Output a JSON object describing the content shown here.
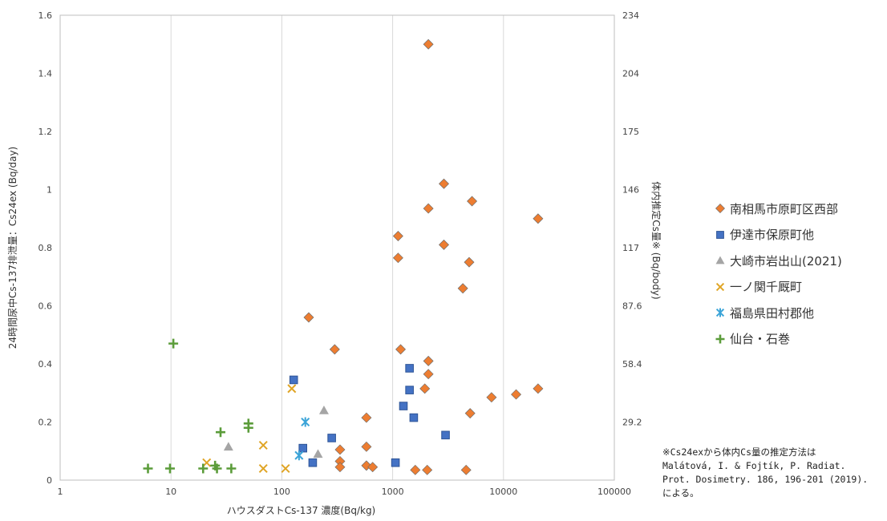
{
  "chart_data": {
    "type": "scatter",
    "xlabel": "ハウスダストCs-137 濃度(Bq/kg)",
    "ylabel": "24時間尿中Cs-137排泄量：Cs24ex (Bq/day)",
    "y2label": "体内推定Cs量※ (Bq/body)",
    "x_scale": "log",
    "xlim": [
      1,
      100000
    ],
    "ylim": [
      0,
      1.6
    ],
    "grid": "vertical major lines only",
    "legend_position": "right",
    "x_ticks": [
      "1",
      "10",
      "100",
      "1000",
      "10000",
      "100000"
    ],
    "y_ticks": [
      "0",
      "0.2",
      "0.4",
      "0.6",
      "0.8",
      "1",
      "1.2",
      "1.4",
      "1.6"
    ],
    "y2_ticks": [
      {
        "label": "29.2",
        "y": 0.2
      },
      {
        "label": "58.4",
        "y": 0.4
      },
      {
        "label": "87.6",
        "y": 0.6
      },
      {
        "label": "117",
        "y": 0.8
      },
      {
        "label": "146",
        "y": 1.0
      },
      {
        "label": "175",
        "y": 1.2
      },
      {
        "label": "204",
        "y": 1.4
      },
      {
        "label": "234",
        "y": 1.6
      }
    ],
    "series": [
      {
        "name": "南相馬市原町区西部",
        "marker": "diamond",
        "color": "#ED7D31",
        "stroke": "#6d6d6d",
        "points": [
          [
            2100,
            1.5
          ],
          [
            2900,
            1.02
          ],
          [
            5200,
            0.96
          ],
          [
            2100,
            0.935
          ],
          [
            20500,
            0.9
          ],
          [
            1120,
            0.84
          ],
          [
            2900,
            0.81
          ],
          [
            1120,
            0.765
          ],
          [
            4900,
            0.75
          ],
          [
            4300,
            0.66
          ],
          [
            175,
            0.56
          ],
          [
            300,
            0.45
          ],
          [
            1180,
            0.45
          ],
          [
            2100,
            0.41
          ],
          [
            2100,
            0.365
          ],
          [
            1950,
            0.315
          ],
          [
            20500,
            0.315
          ],
          [
            13000,
            0.295
          ],
          [
            7800,
            0.285
          ],
          [
            5000,
            0.23
          ],
          [
            580,
            0.215
          ],
          [
            580,
            0.115
          ],
          [
            335,
            0.105
          ],
          [
            335,
            0.065
          ],
          [
            335,
            0.045
          ],
          [
            580,
            0.05
          ],
          [
            660,
            0.045
          ],
          [
            1600,
            0.035
          ],
          [
            2050,
            0.035
          ],
          [
            4600,
            0.035
          ]
        ]
      },
      {
        "name": "伊達市保原町他",
        "marker": "square",
        "color": "#4472C4",
        "stroke": "#2F5597",
        "points": [
          [
            128,
            0.345
          ],
          [
            1420,
            0.385
          ],
          [
            1420,
            0.31
          ],
          [
            1250,
            0.255
          ],
          [
            1550,
            0.215
          ],
          [
            282,
            0.145
          ],
          [
            3000,
            0.155
          ],
          [
            155,
            0.11
          ],
          [
            190,
            0.06
          ],
          [
            1060,
            0.06
          ]
        ]
      },
      {
        "name": "大崎市岩出山(2021)",
        "marker": "triangle",
        "color": "#A5A5A5",
        "stroke": "#A5A5A5",
        "points": [
          [
            240,
            0.24
          ],
          [
            33,
            0.115
          ],
          [
            212,
            0.09
          ]
        ]
      },
      {
        "name": "一ノ関千厩町",
        "marker": "x",
        "color": "#E0A526",
        "stroke": "#E0A526",
        "points": [
          [
            123,
            0.315
          ],
          [
            68,
            0.12
          ],
          [
            21,
            0.06
          ],
          [
            68,
            0.04
          ],
          [
            108,
            0.04
          ]
        ]
      },
      {
        "name": "福島県田村郡他",
        "marker": "star",
        "color": "#3BA4D8",
        "stroke": "#3BA4D8",
        "points": [
          [
            163,
            0.2
          ],
          [
            143,
            0.085
          ]
        ]
      },
      {
        "name": "仙台・石巻",
        "marker": "plus",
        "color": "#5B9C3A",
        "stroke": "#5B9C3A",
        "points": [
          [
            10.5,
            0.47
          ],
          [
            50,
            0.195
          ],
          [
            50,
            0.18
          ],
          [
            28,
            0.165
          ],
          [
            25,
            0.05
          ],
          [
            26,
            0.04
          ],
          [
            6.2,
            0.04
          ],
          [
            9.8,
            0.04
          ],
          [
            19.5,
            0.04
          ],
          [
            35,
            0.04
          ]
        ]
      }
    ]
  },
  "note": {
    "line1": "※Cs24exから体内Cs量の推定方法は",
    "line2": "Malátová, I. & Fojtík, P. Radiat.",
    "line3": "Prot. Dosimetry. 186, 196-201 (2019).",
    "line4": "による。"
  }
}
